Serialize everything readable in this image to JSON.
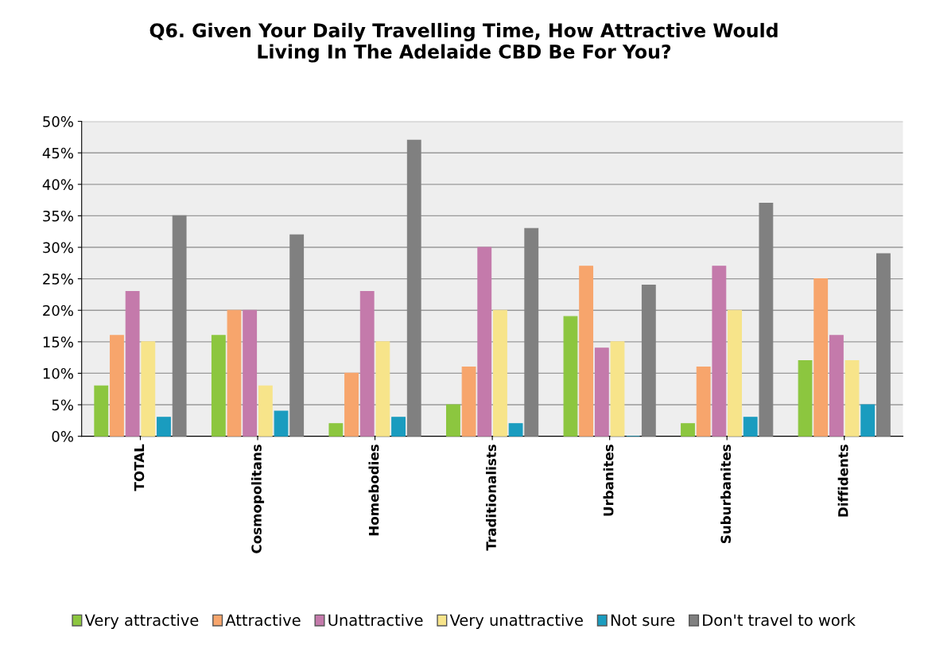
{
  "chart_data": {
    "type": "bar",
    "title": "Q6. Given Your Daily Travelling Time, How Attractive Would\nLiving In The Adelaide CBD Be For You?",
    "categories": [
      "TOTAL",
      "Cosmopolitans",
      "Homebodies",
      "Traditionalists",
      "Urbanites",
      "Suburbanites",
      "Diffidents"
    ],
    "series": [
      {
        "name": "Very attractive",
        "color": "#8cc63f",
        "values": [
          8,
          16,
          2,
          5,
          19,
          2,
          12
        ]
      },
      {
        "name": "Attractive",
        "color": "#f7a56c",
        "values": [
          16,
          20,
          10,
          11,
          27,
          11,
          25
        ]
      },
      {
        "name": "Unattractive",
        "color": "#c47aab",
        "values": [
          23,
          20,
          23,
          30,
          14,
          27,
          16
        ]
      },
      {
        "name": "Very unattractive",
        "color": "#f7e48a",
        "values": [
          15,
          8,
          15,
          20,
          15,
          20,
          12
        ]
      },
      {
        "name": "Not sure",
        "color": "#1a9cbf",
        "values": [
          3,
          4,
          3,
          2,
          0,
          3,
          5
        ]
      },
      {
        "name": "Don't travel to work",
        "color": "#808080",
        "values": [
          35,
          32,
          47,
          33,
          24,
          37,
          29
        ]
      }
    ],
    "ylim": [
      0,
      50
    ],
    "yticks": [
      {
        "value": 0,
        "label": "0%"
      },
      {
        "value": 5,
        "label": "5%"
      },
      {
        "value": 10,
        "label": "10%"
      },
      {
        "value": 15,
        "label": "15%"
      },
      {
        "value": 20,
        "label": "20%"
      },
      {
        "value": 25,
        "label": "25%"
      },
      {
        "value": 30,
        "label": "30%"
      },
      {
        "value": 35,
        "label": "35%"
      },
      {
        "value": 40,
        "label": "40%"
      },
      {
        "value": 45,
        "label": "45%"
      },
      {
        "value": 50,
        "label": "50%"
      }
    ],
    "grid": "y",
    "legend": "bottom"
  }
}
